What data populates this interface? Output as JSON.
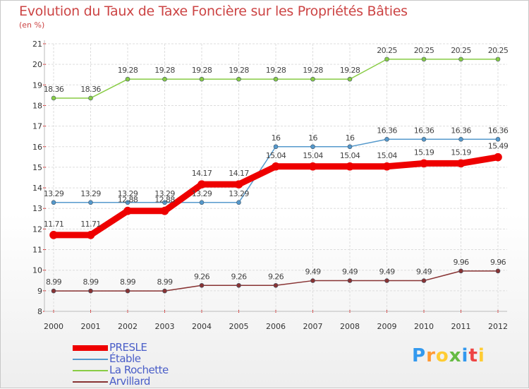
{
  "header": {
    "title": "Evolution du Taux de Taxe Foncière sur les Propriétés Bâties",
    "subtitle": "(en %)"
  },
  "chart_data": {
    "type": "line",
    "title": "Evolution du Taux de Taxe Foncière sur les Propriétés Bâties",
    "ylabel": "(en %)",
    "xlabel": "",
    "x": [
      "2000",
      "2001",
      "2002",
      "2003",
      "2004",
      "2005",
      "2006",
      "2007",
      "2008",
      "2009",
      "2010",
      "2011",
      "2012"
    ],
    "ylim": [
      8,
      21
    ],
    "yticks": [
      8,
      9,
      10,
      11,
      12,
      13,
      14,
      15,
      16,
      17,
      18,
      19,
      20,
      21
    ],
    "grid": true,
    "legend_position": "bottom-left",
    "series": [
      {
        "name": "PRESLE",
        "color": "#ee0000",
        "width": 9,
        "values": [
          11.71,
          11.71,
          12.88,
          12.88,
          14.17,
          14.17,
          15.04,
          15.04,
          15.04,
          15.04,
          15.19,
          15.19,
          15.49
        ],
        "labels": [
          "11.71",
          "11.71",
          "12.88",
          "12.88",
          "14.17",
          "14.17",
          "15.04",
          "15.04",
          "15.04",
          "15.04",
          "15.19",
          "15.19",
          "15.49"
        ]
      },
      {
        "name": "Étable",
        "color": "#5599cc",
        "width": 1.5,
        "values": [
          13.29,
          13.29,
          13.29,
          13.29,
          13.29,
          13.29,
          16,
          16,
          16,
          16.36,
          16.36,
          16.36,
          16.36
        ],
        "labels": [
          "13.29",
          "13.29",
          "13.29",
          "13.29",
          "13.29",
          "13.29",
          "16",
          "16",
          "16",
          "16.36",
          "16.36",
          "16.36",
          "16.36"
        ]
      },
      {
        "name": "La Rochette",
        "color": "#88cc44",
        "width": 1.5,
        "values": [
          18.36,
          18.36,
          19.28,
          19.28,
          19.28,
          19.28,
          19.28,
          19.28,
          19.28,
          20.25,
          20.25,
          20.25,
          20.25
        ],
        "labels": [
          "18.36",
          "18.36",
          "19.28",
          "19.28",
          "19.28",
          "19.28",
          "19.28",
          "19.28",
          "19.28",
          "20.25",
          "20.25",
          "20.25",
          "20.25"
        ]
      },
      {
        "name": "Arvillard",
        "color": "#883333",
        "width": 1.5,
        "values": [
          8.99,
          8.99,
          8.99,
          8.99,
          9.26,
          9.26,
          9.26,
          9.49,
          9.49,
          9.49,
          9.49,
          9.96,
          9.96
        ],
        "labels": [
          "8.99",
          "8.99",
          "8.99",
          "8.99",
          "9.26",
          "9.26",
          "9.26",
          "9.49",
          "9.49",
          "9.49",
          "9.49",
          "9.96",
          "9.96"
        ]
      }
    ]
  },
  "logo": {
    "text": "Proxiti"
  }
}
